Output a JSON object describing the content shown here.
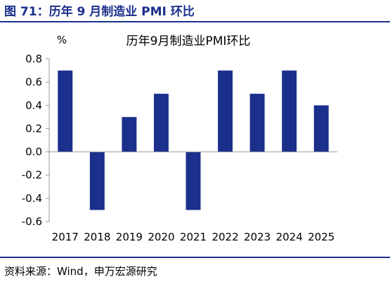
{
  "figure": {
    "title": "图 71：历年 9 月制造业 PMI 环比",
    "source": "资料来源：Wind，申万宏源研究"
  },
  "chart_data": {
    "type": "bar",
    "title": "历年9月制造业PMI环比",
    "ylabel": "%",
    "xlabel": "",
    "categories": [
      "2017",
      "2018",
      "2019",
      "2020",
      "2021",
      "2022",
      "2023",
      "2024",
      "2025"
    ],
    "values": [
      0.7,
      -0.5,
      0.3,
      0.5,
      -0.5,
      0.7,
      0.5,
      0.7,
      0.4
    ],
    "ylim": [
      -0.6,
      0.8
    ],
    "yticks": [
      0.8,
      0.6,
      0.4,
      0.2,
      0.0,
      -0.2,
      -0.4,
      -0.6
    ],
    "ytick_labels": [
      "0.8",
      "0.6",
      "0.4",
      "0.2",
      "0.0",
      "-0.2",
      "-0.4",
      "-0.6"
    ],
    "grid": false,
    "legend": "none",
    "bar_color": "#1b2f8c"
  }
}
